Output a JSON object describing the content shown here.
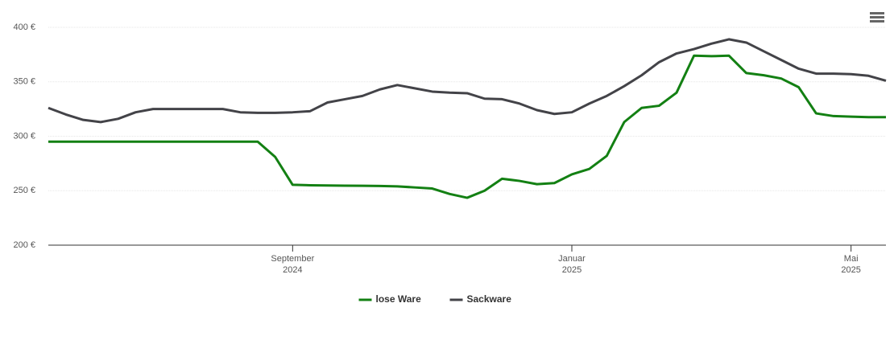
{
  "chart_data": {
    "type": "line",
    "categories": [
      null,
      null,
      null,
      null,
      null,
      null,
      null,
      null,
      null,
      null,
      null,
      null,
      null,
      null,
      "September 2024",
      null,
      null,
      null,
      null,
      null,
      null,
      null,
      null,
      null,
      null,
      null,
      null,
      null,
      null,
      null,
      "Januar 2025",
      null,
      null,
      null,
      null,
      null,
      null,
      null,
      null,
      null,
      null,
      null,
      null,
      null,
      null,
      null,
      "Mai 2025",
      null,
      null
    ],
    "series": [
      {
        "name": "lose Ware",
        "color": "#138013",
        "values": [
          295,
          295,
          295,
          295,
          295,
          295,
          295,
          295,
          295,
          295,
          295,
          295,
          295,
          281,
          255.4,
          255,
          254.8,
          254.6,
          254.5,
          254.3,
          254,
          253,
          252,
          247,
          243.5,
          250,
          261,
          259,
          256,
          257,
          265,
          270,
          282,
          313,
          326,
          328,
          340,
          374,
          373.5,
          374,
          358,
          356,
          353,
          345,
          321,
          318.5,
          318,
          317.5,
          317.5
        ]
      },
      {
        "name": "Sackware",
        "color": "#434348",
        "values": [
          326,
          320,
          315,
          313,
          316,
          322,
          325,
          325,
          325,
          325,
          325,
          322,
          321.5,
          321.5,
          322,
          323,
          331,
          334,
          337,
          343,
          347,
          344,
          341,
          340,
          339.5,
          334.5,
          334,
          330,
          324,
          320.5,
          322,
          330,
          337,
          346,
          356,
          368,
          376,
          380,
          385,
          389,
          386,
          378,
          370,
          362,
          357.5,
          357.5,
          357,
          355.5,
          351
        ]
      }
    ],
    "ylim": [
      200,
      400
    ],
    "yticks": [
      {
        "value": 200,
        "label": "200 €"
      },
      {
        "value": 250,
        "label": "250 €"
      },
      {
        "value": 300,
        "label": "300 €"
      },
      {
        "value": 350,
        "label": "350 €"
      },
      {
        "value": 400,
        "label": "400 €"
      }
    ],
    "grid": true,
    "legend": "bottom"
  }
}
